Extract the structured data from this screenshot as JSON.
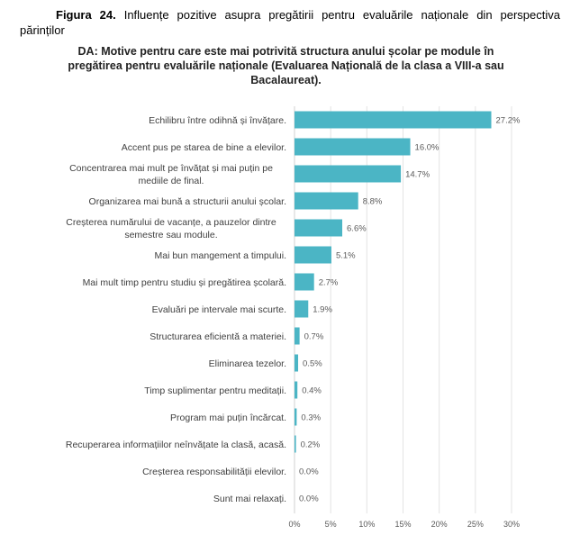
{
  "caption": {
    "label": "Figura 24.",
    "text": " Influențe pozitive asupra pregătirii pentru evaluările naționale din perspectiva părinților"
  },
  "chart_data": {
    "type": "bar",
    "orientation": "horizontal",
    "title": "DA: Motive pentru care este mai potrivită structura anului școlar pe module în pregătirea pentru evaluările naționale (Evaluarea Națională de la clasa a VIII-a sau Bacalaureat).",
    "categories": [
      [
        "Echilibru între odihnă și învățare."
      ],
      [
        "Accent pus pe starea de bine a elevilor."
      ],
      [
        "Concentrarea mai mult pe învățat  și mai puțin pe",
        "mediile de final."
      ],
      [
        "Organizarea mai bună a structurii anului școlar."
      ],
      [
        "Creșterea numărului de vacanțe, a pauzelor dintre",
        "semestre sau module."
      ],
      [
        "Mai bun mangement a timpului."
      ],
      [
        "Mai mult timp pentru studiu și pregătirea școlară."
      ],
      [
        "Evaluări pe intervale mai scurte."
      ],
      [
        "Structurarea eficientă a materiei."
      ],
      [
        "Eliminarea tezelor."
      ],
      [
        "Timp suplimentar pentru meditații."
      ],
      [
        "Program mai puțin încărcat."
      ],
      [
        "Recuperarea informațiilor neînvățate la clasă, acasă."
      ],
      [
        "Creșterea responsabilității elevilor."
      ],
      [
        "Sunt mai relaxați."
      ]
    ],
    "values": [
      27.2,
      16.0,
      14.7,
      8.8,
      6.6,
      5.1,
      2.7,
      1.9,
      0.7,
      0.5,
      0.4,
      0.3,
      0.2,
      0.0,
      0.0
    ],
    "value_labels": [
      "27.2%",
      "16.0%",
      "14.7%",
      "8.8%",
      "6.6%",
      "5.1%",
      "2.7%",
      "1.9%",
      "0.7%",
      "0.5%",
      "0.4%",
      "0.3%",
      "0.2%",
      "0.0%",
      "0.0%"
    ],
    "xlim": [
      0,
      30
    ],
    "xticks": [
      "0%",
      "5%",
      "10%",
      "15%",
      "20%",
      "25%",
      "30%"
    ],
    "grid": true,
    "color": "#4BB5C5"
  }
}
